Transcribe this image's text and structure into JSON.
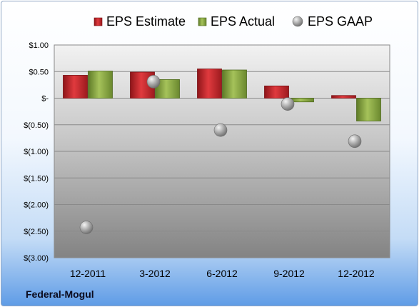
{
  "company": "Federal-Mogul",
  "chart_data": {
    "type": "bar",
    "categories": [
      "12-2011",
      "3-2012",
      "6-2012",
      "9-2012",
      "12-2012"
    ],
    "series": [
      {
        "name": "EPS Estimate",
        "kind": "bar",
        "color": "#c0262b",
        "values": [
          0.43,
          0.49,
          0.55,
          0.23,
          0.05
        ]
      },
      {
        "name": "EPS Actual",
        "kind": "bar",
        "color": "#8dad43",
        "values": [
          0.51,
          0.35,
          0.53,
          -0.07,
          -0.43
        ]
      },
      {
        "name": "EPS GAAP",
        "kind": "point",
        "color": "#a9a9a9",
        "values": [
          -2.43,
          0.31,
          -0.6,
          -0.11,
          -0.81
        ]
      }
    ],
    "ylim": [
      -3.0,
      1.0
    ],
    "yticks": [
      1.0,
      0.5,
      0.0,
      -0.5,
      -1.0,
      -1.5,
      -2.0,
      -2.5,
      -3.0
    ],
    "ytick_labels": [
      "$1.00",
      "$0.50",
      "$-",
      "$(0.50)",
      "$(1.00)",
      "$(1.50)",
      "$(2.00)",
      "$(2.50)",
      "$(3.00)"
    ],
    "grid": true,
    "legend_position": "top"
  }
}
